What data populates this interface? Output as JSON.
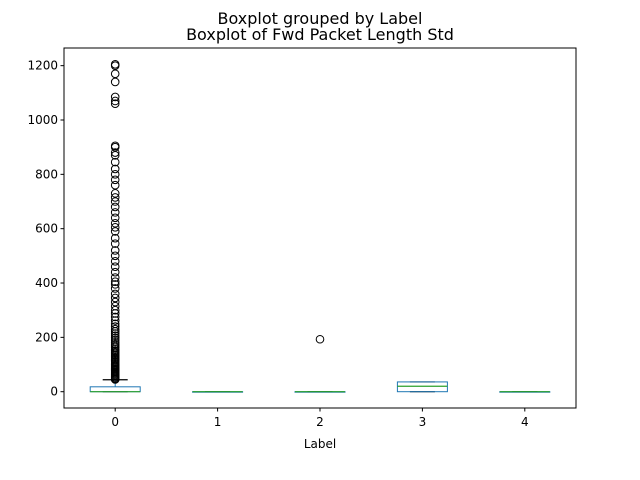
{
  "chart_data": {
    "type": "boxplot",
    "suptitle": "Boxplot grouped by Label",
    "title": "Boxplot of Fwd Packet Length Std",
    "xlabel": "Label",
    "ylabel": "",
    "categories": [
      "0",
      "1",
      "2",
      "3",
      "4"
    ],
    "yticks": [
      0,
      200,
      400,
      600,
      800,
      1000,
      1200
    ],
    "ylim": [
      -60,
      1265
    ],
    "grid": false,
    "colors": {
      "box": "#1f77b4",
      "median": "#2ca02c",
      "whisker": "#000000",
      "outlier": "#000000"
    },
    "boxes": [
      {
        "label": "0",
        "whisker_low": 0,
        "q1": 0,
        "median": 0,
        "q3": 18,
        "whisker_high": 44,
        "outliers": [
          45,
          48,
          52,
          56,
          60,
          64,
          68,
          72,
          76,
          80,
          84,
          88,
          92,
          96,
          100,
          105,
          110,
          115,
          120,
          125,
          130,
          135,
          140,
          145,
          150,
          156,
          162,
          168,
          175,
          182,
          190,
          198,
          206,
          214,
          222,
          230,
          240,
          250,
          262,
          275,
          288,
          300,
          315,
          330,
          345,
          360,
          380,
          395,
          405,
          420,
          440,
          460,
          480,
          500,
          520,
          545,
          565,
          590,
          605,
          620,
          640,
          660,
          680,
          700,
          715,
          730,
          760,
          780,
          800,
          820,
          845,
          870,
          880,
          900,
          905,
          1060,
          1070,
          1085,
          1140,
          1170,
          1200,
          1205
        ]
      },
      {
        "label": "1",
        "whisker_low": 0,
        "q1": 0,
        "median": 0,
        "q3": 0,
        "whisker_high": 0,
        "outliers": []
      },
      {
        "label": "2",
        "whisker_low": 0,
        "q1": 0,
        "median": 0,
        "q3": 0,
        "whisker_high": 0,
        "outliers": [
          193
        ]
      },
      {
        "label": "3",
        "whisker_low": 0,
        "q1": 0,
        "median": 20,
        "q3": 36,
        "whisker_high": 36,
        "outliers": []
      },
      {
        "label": "4",
        "whisker_low": 0,
        "q1": 0,
        "median": 0,
        "q3": 0,
        "whisker_high": 0,
        "outliers": []
      }
    ]
  }
}
